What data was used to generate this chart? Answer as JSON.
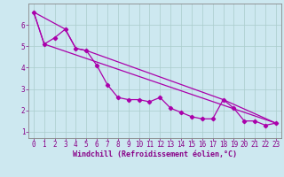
{
  "xlabel": "Windchill (Refroidissement éolien,°C)",
  "bg_color": "#cde8f0",
  "line_color": "#aa00aa",
  "grid_color": "#aacccc",
  "axis_color": "#880088",
  "spine_color": "#888888",
  "xlim": [
    -0.5,
    23.5
  ],
  "ylim": [
    0.7,
    7.0
  ],
  "xticks": [
    0,
    1,
    2,
    3,
    4,
    5,
    6,
    7,
    8,
    9,
    10,
    11,
    12,
    13,
    14,
    15,
    16,
    17,
    18,
    19,
    20,
    21,
    22,
    23
  ],
  "yticks": [
    1,
    2,
    3,
    4,
    5,
    6
  ],
  "series1_x": [
    0,
    1,
    2,
    3,
    4,
    5,
    6,
    7,
    8,
    9,
    10,
    11,
    12,
    13,
    14,
    15,
    16,
    17,
    18,
    19,
    20,
    21,
    22,
    23
  ],
  "series1_y": [
    6.6,
    5.1,
    5.4,
    5.8,
    4.9,
    4.8,
    4.1,
    3.2,
    2.6,
    2.5,
    2.5,
    2.4,
    2.6,
    2.1,
    1.9,
    1.7,
    1.6,
    1.6,
    2.5,
    2.1,
    1.5,
    1.5,
    1.3,
    1.4
  ],
  "series2_x": [
    0,
    3,
    4,
    5,
    18,
    23
  ],
  "series2_y": [
    6.6,
    5.8,
    4.9,
    4.8,
    2.5,
    1.4
  ],
  "series3_x": [
    0,
    1,
    23
  ],
  "series3_y": [
    6.6,
    5.1,
    1.4
  ],
  "line_width": 0.9,
  "marker": "D",
  "marker_size": 2.2,
  "tick_fontsize": 5.5,
  "xlabel_fontsize": 6.0
}
